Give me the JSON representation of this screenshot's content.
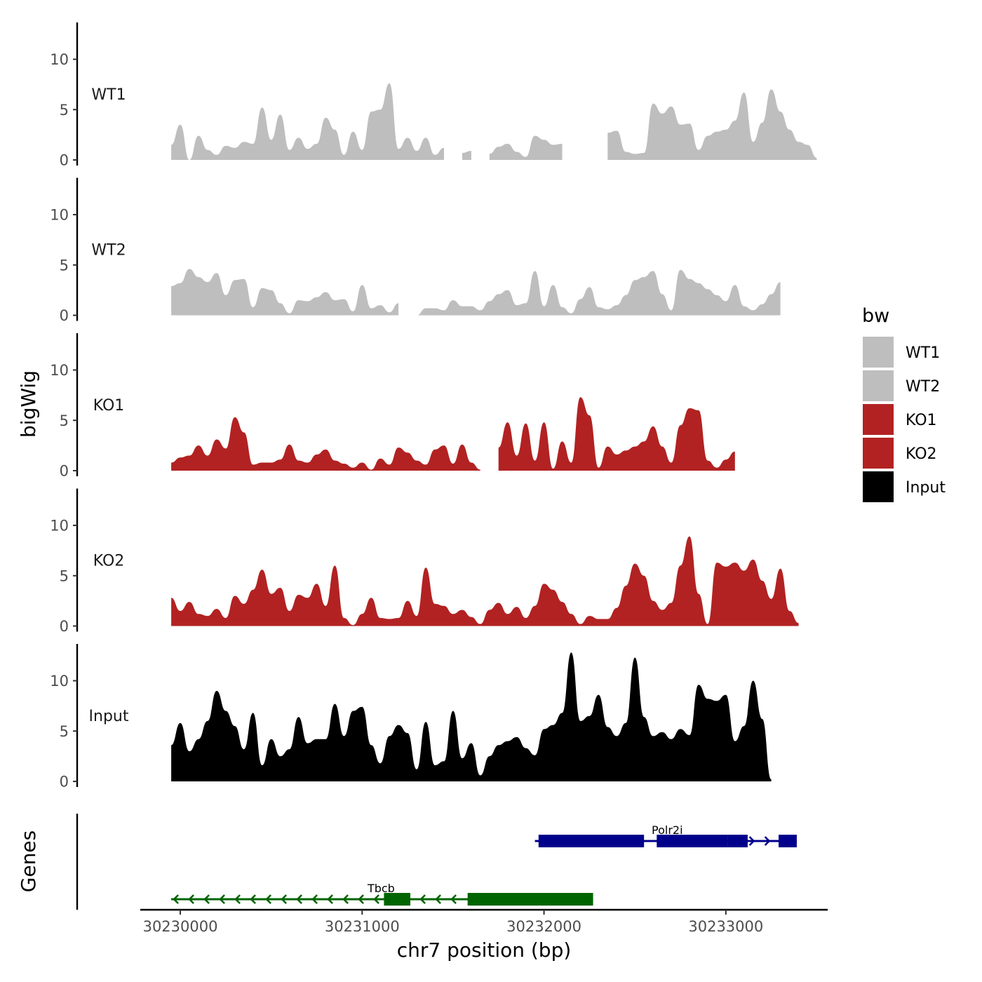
{
  "chart_data": {
    "type": "area",
    "subtype": "genome-browser coverage tracks",
    "xlabel": "chr7 position (bp)",
    "ylabel": "bigWig",
    "gene_panel_label": "Genes",
    "xlim": [
      30229780,
      30233560
    ],
    "x_ticks": [
      30230000,
      30231000,
      30232000,
      30233000
    ],
    "x_tick_labels": [
      "30230000",
      "30231000",
      "30232000",
      "30233000"
    ],
    "ylim": [
      0,
      13
    ],
    "y_ticks": [
      0,
      5,
      10
    ],
    "y_tick_labels": [
      "0",
      "5",
      "10"
    ],
    "legend": {
      "title": "bw",
      "entries": [
        {
          "label": "WT1",
          "color": "#bebebe"
        },
        {
          "label": "WT2",
          "color": "#bebebe"
        },
        {
          "label": "KO1",
          "color": "#b22222"
        },
        {
          "label": "KO2",
          "color": "#b22222"
        },
        {
          "label": "Input",
          "color": "#000000"
        }
      ]
    },
    "x_start": 30229950,
    "x_step": 50,
    "series": [
      {
        "name": "WT1",
        "color": "#bebebe",
        "values": [
          1.5,
          3.5,
          0.0,
          2.4,
          1.0,
          0.5,
          1.4,
          1.2,
          1.8,
          1.6,
          5.2,
          2.0,
          4.5,
          1.0,
          2.2,
          1.1,
          1.6,
          4.2,
          3.0,
          0.5,
          2.8,
          1.0,
          4.8,
          5.0,
          7.6,
          1.1,
          2.2,
          0.9,
          2.2,
          0.5,
          1.2,
          null,
          0.7,
          0.9,
          null,
          0.6,
          1.3,
          1.6,
          0.8,
          0.3,
          2.4,
          2.0,
          1.5,
          1.6,
          null,
          null,
          null,
          null,
          2.7,
          2.9,
          0.8,
          0.6,
          0.7,
          5.6,
          4.6,
          5.3,
          3.5,
          3.6,
          1.0,
          2.4,
          2.8,
          3.0,
          3.9,
          6.7,
          1.8,
          3.7,
          7.0,
          4.8,
          3.0,
          1.8,
          1.5,
          0.2
        ],
        "gaps": [
          [
            30231525,
            30231575
          ],
          [
            30232175,
            30232260
          ]
        ]
      },
      {
        "name": "WT2",
        "color": "#bebebe",
        "values": [
          2.9,
          3.2,
          4.6,
          3.8,
          3.3,
          4.2,
          2.0,
          3.5,
          3.6,
          0.8,
          2.7,
          2.5,
          1.2,
          0.2,
          1.5,
          1.4,
          1.8,
          2.3,
          1.5,
          1.6,
          0.4,
          3.0,
          0.7,
          1.0,
          0.3,
          1.2,
          null,
          0.0,
          0.7,
          0.7,
          0.5,
          1.5,
          0.9,
          0.9,
          0.5,
          1.4,
          2.1,
          2.5,
          1.0,
          1.2,
          4.4,
          0.9,
          3.0,
          0.8,
          0.2,
          1.6,
          2.8,
          0.8,
          0.6,
          1.0,
          2.0,
          3.5,
          3.8,
          4.4,
          2.1,
          0.5,
          4.5,
          3.6,
          3.2,
          2.6,
          2.0,
          1.4,
          3.0,
          0.9,
          0.5,
          1.1,
          2.1,
          3.3
        ],
        "gaps": [
          [
            30231350,
            30231410
          ]
        ]
      },
      {
        "name": "KO1",
        "color": "#b22222",
        "values": [
          0.8,
          1.3,
          1.5,
          2.5,
          1.5,
          3.1,
          2.2,
          5.3,
          3.8,
          0.6,
          0.8,
          0.8,
          1.1,
          2.6,
          1.0,
          0.8,
          1.6,
          2.1,
          1.0,
          0.7,
          0.3,
          0.8,
          0.1,
          1.2,
          0.6,
          2.3,
          1.8,
          1.0,
          0.6,
          2.1,
          2.5,
          0.7,
          2.6,
          0.8,
          0.1,
          null,
          2.3,
          4.8,
          1.5,
          4.7,
          1.0,
          4.8,
          0.2,
          2.9,
          0.8,
          7.3,
          5.5,
          0.3,
          2.4,
          1.6,
          2.0,
          2.4,
          2.9,
          4.4,
          2.4,
          0.8,
          4.5,
          6.2,
          6.0,
          1.0,
          0.3,
          1.1,
          1.9
        ],
        "gaps": [
          [
            30231450,
            30231480
          ],
          [
            30231730,
            30231800
          ],
          [
            30233260,
            30233300
          ]
        ]
      },
      {
        "name": "KO2",
        "color": "#b22222",
        "values": [
          2.8,
          1.5,
          2.4,
          1.2,
          1.0,
          1.7,
          0.8,
          3.0,
          2.2,
          3.6,
          5.6,
          3.2,
          3.8,
          1.5,
          3.1,
          2.8,
          4.2,
          2.0,
          6.0,
          0.8,
          0.1,
          1.2,
          2.8,
          0.8,
          0.7,
          0.8,
          2.5,
          1.0,
          5.8,
          2.2,
          2.0,
          1.2,
          1.6,
          0.9,
          0.2,
          1.6,
          2.3,
          1.2,
          1.9,
          0.8,
          2.0,
          4.2,
          3.6,
          2.4,
          1.2,
          0.2,
          1.0,
          0.7,
          0.7,
          1.8,
          4.0,
          6.2,
          5.0,
          2.5,
          1.6,
          2.3,
          6.0,
          8.9,
          3.2,
          0.2,
          6.3,
          5.9,
          6.3,
          5.5,
          6.6,
          4.5,
          2.7,
          5.7,
          1.5,
          0.3
        ],
        "gaps": [
          [
            30230960,
            30230995
          ]
        ]
      },
      {
        "name": "Input",
        "color": "#000000",
        "values": [
          3.6,
          5.8,
          3.0,
          4.2,
          6.0,
          9.0,
          7.0,
          5.5,
          3.2,
          6.8,
          1.6,
          4.2,
          2.5,
          3.2,
          6.4,
          3.8,
          4.2,
          4.2,
          7.7,
          4.5,
          7.0,
          7.4,
          3.6,
          1.8,
          4.5,
          5.6,
          4.8,
          1.2,
          5.9,
          1.6,
          2.0,
          7.0,
          2.3,
          3.8,
          0.6,
          2.5,
          3.6,
          4.0,
          4.4,
          3.3,
          2.6,
          5.2,
          5.6,
          6.8,
          12.8,
          6.0,
          6.5,
          8.6,
          5.4,
          4.5,
          5.8,
          12.3,
          6.4,
          4.5,
          4.9,
          4.2,
          5.2,
          4.6,
          9.6,
          8.2,
          8.0,
          8.6,
          4.0,
          5.5,
          10.0,
          6.2,
          0.2
        ]
      }
    ],
    "genes": [
      {
        "name": "Polr2i",
        "color": "#00008b",
        "strand": "+",
        "start": 30231950,
        "end": 30233390,
        "exons": [
          [
            30231970,
            30232550
          ],
          [
            30232620,
            30233010
          ],
          [
            30233010,
            30233120
          ],
          [
            30233290,
            30233390
          ]
        ]
      },
      {
        "name": "Tbcb",
        "color": "#006400",
        "strand": "-",
        "start": 30229950,
        "end": 30232270,
        "exons": [
          [
            30231120,
            30231265
          ],
          [
            30231580,
            30232270
          ]
        ]
      }
    ]
  }
}
